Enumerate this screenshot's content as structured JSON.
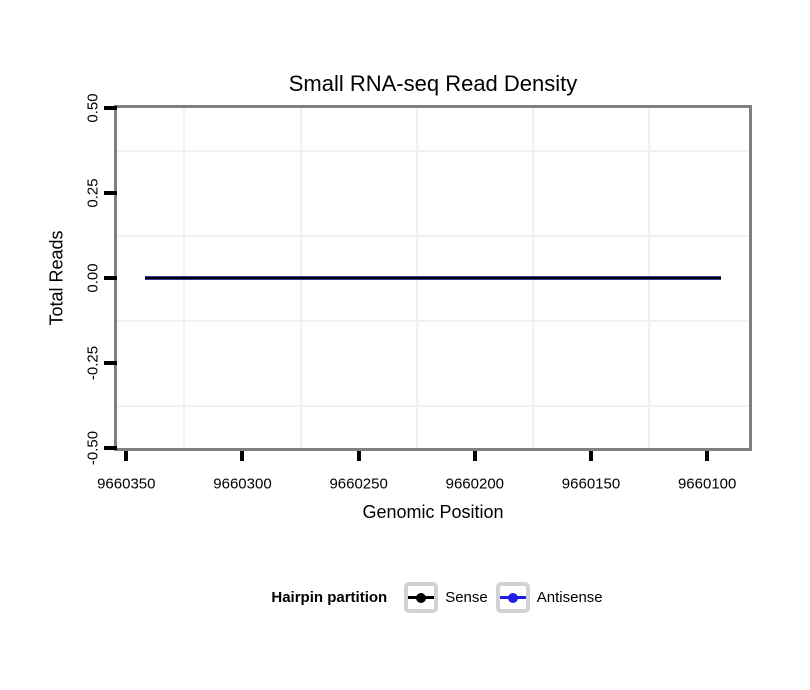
{
  "chart_data": {
    "type": "line",
    "title": "Small RNA-seq Read Density",
    "xlabel": "Genomic Position",
    "ylabel": "Total Reads",
    "x_axis": {
      "ticks": [
        9660350,
        9660300,
        9660250,
        9660200,
        9660150,
        9660100
      ],
      "tick_labels": [
        "9660350",
        "9660300",
        "9660250",
        "9660200",
        "9660150",
        "9660100"
      ],
      "range": [
        9660354,
        9660082
      ],
      "reversed": true
    },
    "y_axis": {
      "ticks": [
        0.5,
        0.25,
        0.0,
        -0.25,
        -0.5
      ],
      "tick_labels": [
        "0.50",
        "0.25",
        "0.00",
        "-0.25",
        "-0.50"
      ],
      "range": [
        -0.5,
        0.5
      ]
    },
    "series": [
      {
        "name": "Sense",
        "color": "#000000",
        "x": [
          9660342,
          9660094
        ],
        "y": [
          0,
          0
        ]
      },
      {
        "name": "Antisense",
        "color": "#1E1EEB",
        "x": [
          9660342,
          9660094
        ],
        "y": [
          0,
          0
        ]
      }
    ],
    "legend": {
      "title": "Hairpin partition",
      "position": "bottom",
      "entries": [
        {
          "label": "Sense",
          "color": "#000000"
        },
        {
          "label": "Antisense",
          "color": "#1E1EEB"
        }
      ]
    },
    "grid": {
      "minor_only": true,
      "color": "#F1F1F1"
    },
    "colors": {
      "panel_border": "#7F7F7F",
      "tick": "#000000",
      "line_edge": "#3C3C8F",
      "legend_key_border": "#D2D2D2",
      "background": "#FFFFFF"
    }
  }
}
